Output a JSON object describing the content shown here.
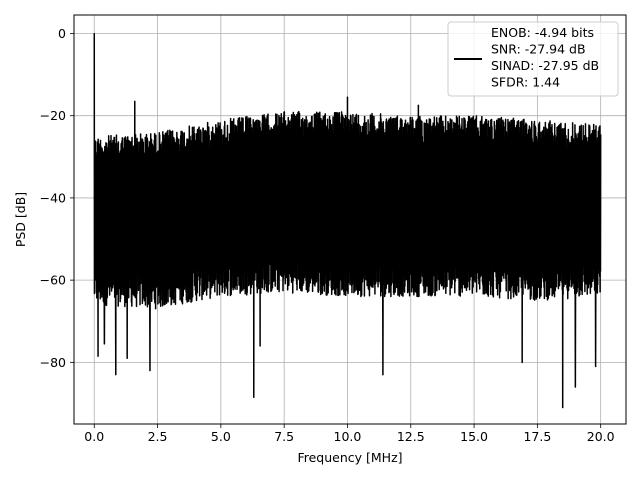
{
  "chart_data": {
    "type": "line",
    "title": "",
    "xlabel": "Frequency [MHz]",
    "ylabel": "PSD [dB]",
    "xlim": [
      -0.8,
      21.0
    ],
    "ylim": [
      -95,
      4.5
    ],
    "xticks": [
      0.0,
      2.5,
      5.0,
      7.5,
      10.0,
      12.5,
      15.0,
      17.5,
      20.0
    ],
    "xtick_labels": [
      "0.0",
      "2.5",
      "5.0",
      "7.5",
      "10.0",
      "12.5",
      "15.0",
      "17.5",
      "20.0"
    ],
    "yticks": [
      0,
      -20,
      -40,
      -60,
      -80
    ],
    "ytick_labels": [
      "0",
      "−20",
      "−40",
      "−60",
      "−80"
    ],
    "grid": true,
    "legend_position": "top-right",
    "series_color": "#000000",
    "series": [
      {
        "name": "",
        "x_range": [
          0.0,
          20.0
        ],
        "upper_envelope": {
          "x": [
            0.0,
            2.5,
            5.0,
            7.5,
            10.0,
            12.5,
            15.0,
            17.5,
            20.0
          ],
          "y": [
            -25,
            -24,
            -21,
            -19,
            -19,
            -20,
            -20,
            -21,
            -22
          ]
        },
        "lower_envelope": {
          "x": [
            0.0,
            2.5,
            5.0,
            7.5,
            10.0,
            12.5,
            15.0,
            17.5,
            20.0
          ],
          "y": [
            -66,
            -67,
            -64,
            -63,
            -64,
            -64,
            -64,
            -65,
            -64
          ]
        },
        "peaks": [
          {
            "x": 0.0,
            "y": 0.0
          },
          {
            "x": 1.6,
            "y": -16.5
          },
          {
            "x": 10.0,
            "y": -15.5
          },
          {
            "x": 12.8,
            "y": -17.5
          }
        ],
        "dips": [
          {
            "x": 0.15,
            "y": -78.5
          },
          {
            "x": 0.4,
            "y": -75.5
          },
          {
            "x": 0.85,
            "y": -83.0
          },
          {
            "x": 1.3,
            "y": -79.0
          },
          {
            "x": 2.2,
            "y": -82.0
          },
          {
            "x": 6.3,
            "y": -88.5
          },
          {
            "x": 6.55,
            "y": -76.0
          },
          {
            "x": 11.4,
            "y": -83.0
          },
          {
            "x": 16.9,
            "y": -80.0
          },
          {
            "x": 18.5,
            "y": -91.0
          },
          {
            "x": 19.0,
            "y": -86.0
          },
          {
            "x": 19.8,
            "y": -81.0
          }
        ]
      }
    ],
    "legend": {
      "entries": [
        "ENOB: -4.94 bits",
        "SNR: -27.94 dB",
        "SINAD: -27.95 dB",
        "SFDR: 1.44"
      ]
    }
  }
}
